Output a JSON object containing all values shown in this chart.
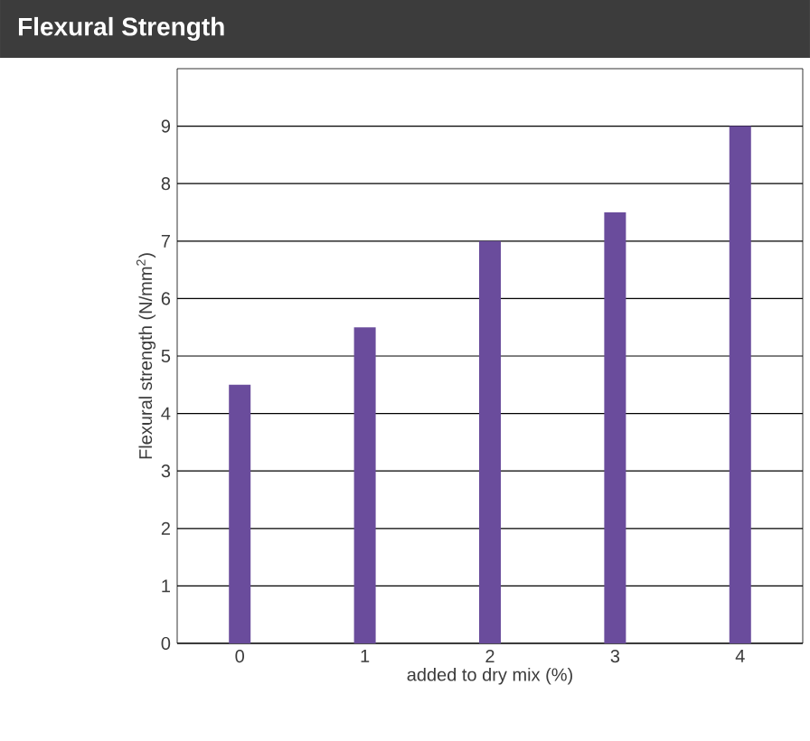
{
  "chart_data": {
    "type": "bar",
    "title": "Flexural Strength",
    "xlabel": "added to dry mix (%)",
    "ylabel": "Flexural strength (N/mm$^{2}$)",
    "categories": [
      "0",
      "1",
      "2",
      "3",
      "4"
    ],
    "values": [
      4.5,
      5.5,
      7,
      7.5,
      9
    ],
    "color": "#6a4c9c",
    "ylim": [
      0,
      10
    ],
    "yticks": [
      0,
      1,
      2,
      3,
      4,
      5,
      6,
      7,
      8,
      9
    ],
    "grid": "y"
  }
}
